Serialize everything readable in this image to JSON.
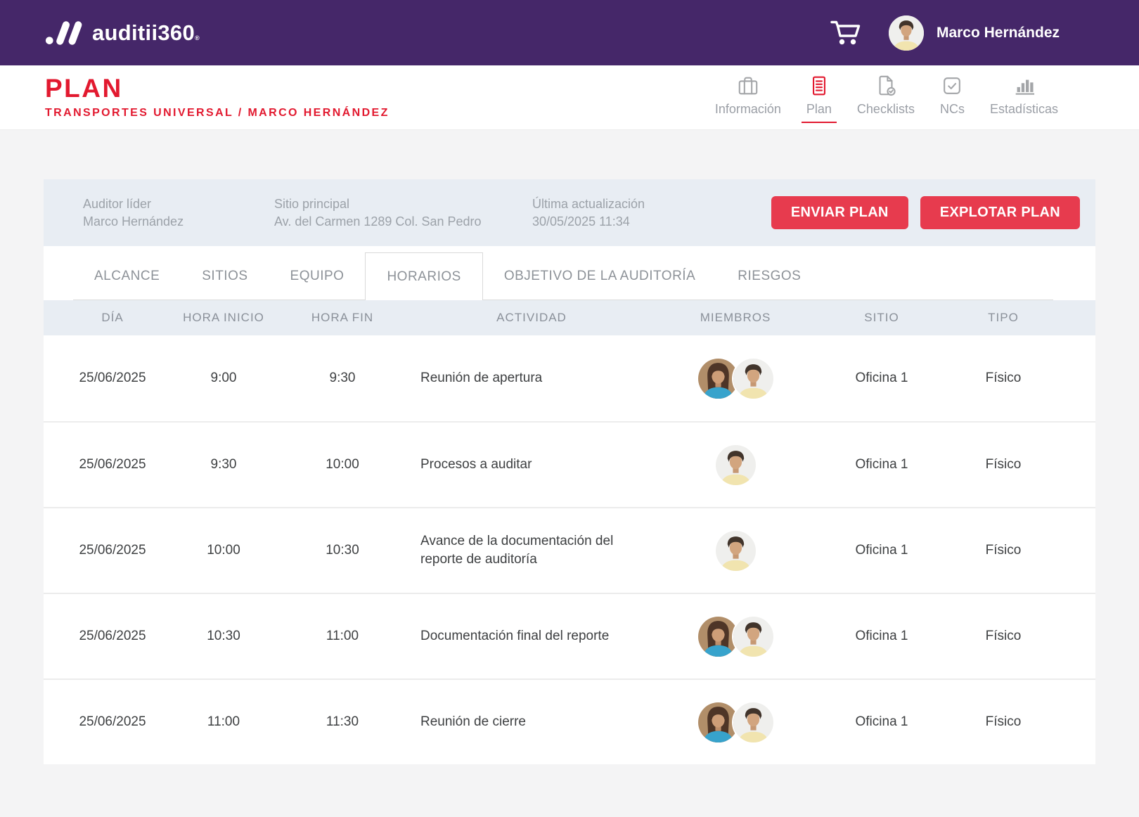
{
  "brand": {
    "name": "auditii360",
    "trademark": "®"
  },
  "topbar": {
    "user_name": "Marco Hernández"
  },
  "header": {
    "title": "PLAN",
    "breadcrumb": "TRANSPORTES UNIVERSAL / MARCO HERNÁNDEZ",
    "active_nav": "Plan",
    "nav": [
      {
        "label": "Información",
        "icon": "briefcase-icon"
      },
      {
        "label": "Plan",
        "icon": "document-lines-icon"
      },
      {
        "label": "Checklists",
        "icon": "document-check-icon"
      },
      {
        "label": "NCs",
        "icon": "checkbox-check-icon"
      },
      {
        "label": "Estadísticas",
        "icon": "bar-chart-icon"
      }
    ]
  },
  "plan_summary": {
    "fields": [
      {
        "label": "Auditor líder",
        "value": "Marco Hernández"
      },
      {
        "label": "Sitio principal",
        "value": "Av. del Carmen 1289 Col. San Pedro"
      },
      {
        "label": "Última actualización",
        "value": "30/05/2025 11:34"
      }
    ],
    "buttons": [
      {
        "label": "ENVIAR PLAN"
      },
      {
        "label": "EXPLOTAR PLAN"
      }
    ]
  },
  "tabs": {
    "active": "HORARIOS",
    "items": [
      "ALCANCE",
      "SITIOS",
      "EQUIPO",
      "HORARIOS",
      "OBJETIVO DE LA AUDITORÍA",
      "RIESGOS"
    ]
  },
  "schedule_table": {
    "columns": [
      "DÍA",
      "HORA INICIO",
      "HORA FIN",
      "ACTIVIDAD",
      "MIEMBROS",
      "SITIO",
      "TIPO"
    ],
    "rows": [
      {
        "dia": "25/06/2025",
        "inicio": "9:00",
        "fin": "9:30",
        "actividad": "Reunión de apertura",
        "miembros": [
          "female",
          "male"
        ],
        "sitio": "Oficina 1",
        "tipo": "Físico"
      },
      {
        "dia": "25/06/2025",
        "inicio": "9:30",
        "fin": "10:00",
        "actividad": "Procesos a auditar",
        "miembros": [
          "male"
        ],
        "sitio": "Oficina 1",
        "tipo": "Físico"
      },
      {
        "dia": "25/06/2025",
        "inicio": "10:00",
        "fin": "10:30",
        "actividad": "Avance de la documentación del reporte de auditoría",
        "miembros": [
          "male"
        ],
        "sitio": "Oficina 1",
        "tipo": "Físico"
      },
      {
        "dia": "25/06/2025",
        "inicio": "10:30",
        "fin": "11:00",
        "actividad": "Documentación final del reporte",
        "miembros": [
          "female",
          "male"
        ],
        "sitio": "Oficina 1",
        "tipo": "Físico"
      },
      {
        "dia": "25/06/2025",
        "inicio": "11:00",
        "fin": "11:30",
        "actividad": "Reunión de cierre",
        "miembros": [
          "female",
          "male"
        ],
        "sitio": "Oficina 1",
        "tipo": "Físico"
      }
    ]
  },
  "colors": {
    "brand_purple": "#452769",
    "brand_red": "#E2192F",
    "button_red": "#E73B4E",
    "panel_blue_gray": "#E8EDF3",
    "page_background": "#F4F4F5"
  }
}
